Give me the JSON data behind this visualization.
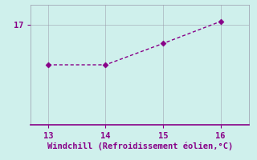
{
  "x": [
    13,
    14,
    15,
    16
  ],
  "y": [
    16.4,
    16.4,
    16.72,
    17.05
  ],
  "line_color": "#880088",
  "marker_color": "#880088",
  "background_color": "#cff0ec",
  "grid_color": "#9999aa",
  "tick_color": "#880088",
  "xlabel": "Windchill (Refroidissement éolien,°C)",
  "xlabel_color": "#880088",
  "xlabel_fontsize": 7.5,
  "xlim": [
    12.7,
    16.5
  ],
  "ylim": [
    15.5,
    17.3
  ],
  "xticks": [
    13,
    14,
    15,
    16
  ],
  "yticks": [
    17
  ],
  "tick_fontsize": 7.5,
  "linewidth": 1.0,
  "markersize": 3.5
}
